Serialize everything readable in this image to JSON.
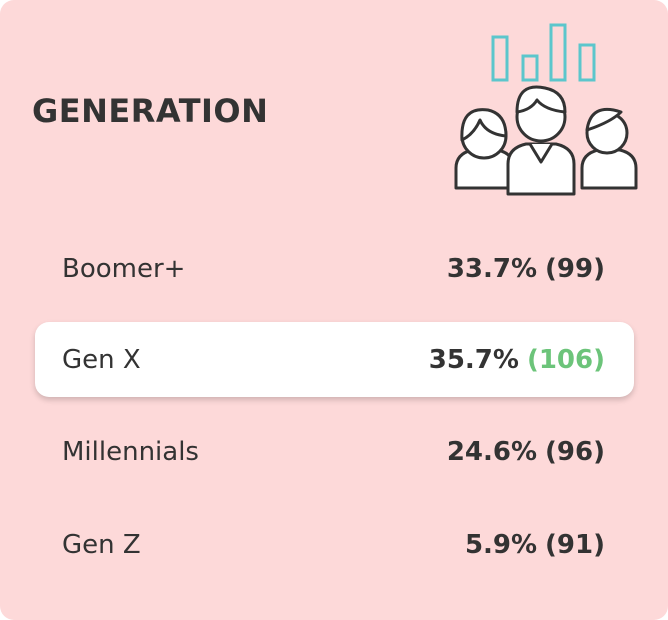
{
  "card": {
    "title": "GENERATION",
    "rows": [
      {
        "label": "Boomer+",
        "share": "33.7%",
        "count": "(99)",
        "highlighted": false
      },
      {
        "label": "Gen X",
        "share": "35.7%",
        "count": "(106)",
        "highlighted": true
      },
      {
        "label": "Millennials",
        "share": "24.6%",
        "count": "(96)",
        "highlighted": false
      },
      {
        "label": "Gen Z",
        "share": "5.9%",
        "count": "(91)",
        "highlighted": false
      }
    ]
  }
}
